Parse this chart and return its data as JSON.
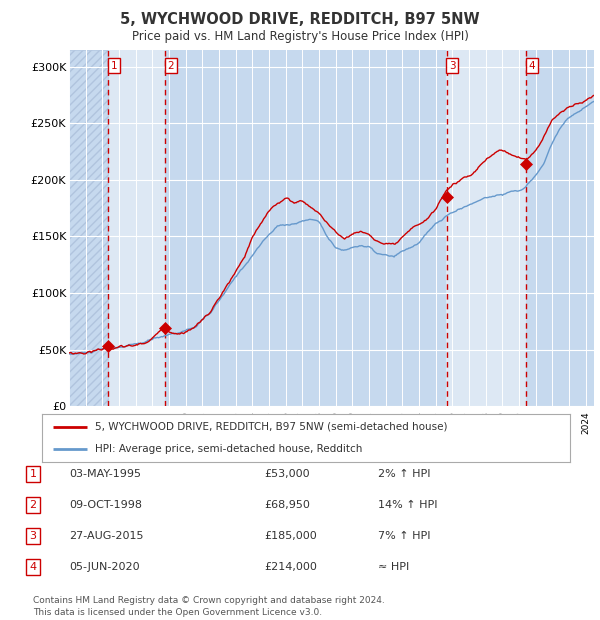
{
  "title": "5, WYCHWOOD DRIVE, REDDITCH, B97 5NW",
  "subtitle": "Price paid vs. HM Land Registry's House Price Index (HPI)",
  "ytick_vals": [
    0,
    50000,
    100000,
    150000,
    200000,
    250000,
    300000
  ],
  "ylim": [
    0,
    315000
  ],
  "xlim_start": 1993.0,
  "xlim_end": 2024.5,
  "plot_bg_color": "#dde8f4",
  "grid_color": "#ffffff",
  "hatch_region_end": 1995.33,
  "sale_dates": [
    1995.33,
    1998.75,
    2015.65,
    2020.42
  ],
  "sale_prices": [
    53000,
    68950,
    185000,
    214000
  ],
  "sale_labels": [
    "1",
    "2",
    "3",
    "4"
  ],
  "dashed_line_color": "#cc0000",
  "sale_marker_color": "#cc0000",
  "hpi_line_color": "#6699cc",
  "price_line_color": "#cc0000",
  "legend_label_price": "5, WYCHWOOD DRIVE, REDDITCH, B97 5NW (semi-detached house)",
  "legend_label_hpi": "HPI: Average price, semi-detached house, Redditch",
  "table_entries": [
    {
      "num": "1",
      "date": "03-MAY-1995",
      "price": "£53,000",
      "hpi": "2% ↑ HPI"
    },
    {
      "num": "2",
      "date": "09-OCT-1998",
      "price": "£68,950",
      "hpi": "14% ↑ HPI"
    },
    {
      "num": "3",
      "date": "27-AUG-2015",
      "price": "£185,000",
      "hpi": "7% ↑ HPI"
    },
    {
      "num": "4",
      "date": "05-JUN-2020",
      "price": "£214,000",
      "hpi": "≈ HPI"
    }
  ],
  "footnote": "Contains HM Land Registry data © Crown copyright and database right 2024.\nThis data is licensed under the Open Government Licence v3.0.",
  "region_colors": [
    "#c6d9ee",
    "#dde8f4"
  ],
  "region_boundaries": [
    1993.0,
    1995.33,
    1998.75,
    2015.65,
    2020.42,
    2024.5
  ]
}
